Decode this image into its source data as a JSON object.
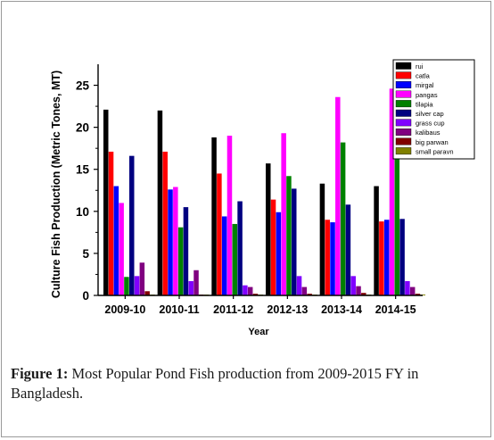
{
  "chart_data": {
    "type": "bar",
    "ylabel": "Culture Fish Production (Metric Tones, MT)",
    "xlabel": "Year",
    "ylim": [
      0,
      27.5
    ],
    "yticks": [
      0,
      5,
      10,
      15,
      20,
      25
    ],
    "grid": false,
    "legend_position": "top-right",
    "categories": [
      "2009-10",
      "2010-11",
      "2011-12",
      "2012-13",
      "2013-14",
      "2014-15"
    ],
    "series": [
      {
        "name": "rui",
        "color": "#000000",
        "values": [
          22.1,
          22.0,
          18.8,
          15.7,
          13.3,
          13.0
        ]
      },
      {
        "name": "catla",
        "color": "#ff0000",
        "values": [
          17.1,
          17.1,
          14.5,
          11.4,
          9.0,
          8.8
        ]
      },
      {
        "name": "mirgal",
        "color": "#0000ff",
        "values": [
          13.0,
          12.6,
          9.4,
          9.9,
          8.7,
          9.0
        ]
      },
      {
        "name": "pangas",
        "color": "#ff00ff",
        "values": [
          11.0,
          12.9,
          19.0,
          19.3,
          23.6,
          24.6
        ]
      },
      {
        "name": "tilapia",
        "color": "#008000",
        "values": [
          2.2,
          8.1,
          8.5,
          14.2,
          18.2,
          18.7
        ]
      },
      {
        "name": "silver cap",
        "color": "#000080",
        "values": [
          16.6,
          10.5,
          11.2,
          12.7,
          10.8,
          9.1
        ]
      },
      {
        "name": "grass cup",
        "color": "#8000ff",
        "values": [
          2.3,
          1.7,
          1.2,
          2.3,
          2.3,
          1.7
        ]
      },
      {
        "name": "kalibaus",
        "color": "#800080",
        "values": [
          3.9,
          3.0,
          1.0,
          1.0,
          1.1,
          1.0
        ]
      },
      {
        "name": "big parwan",
        "color": "#800000",
        "values": [
          0.5,
          0.1,
          0.2,
          0.2,
          0.3,
          0.2
        ]
      },
      {
        "name": "small paravn",
        "color": "#808000",
        "values": [
          0.1,
          0.1,
          0.1,
          0.1,
          0.1,
          0.1
        ]
      }
    ]
  },
  "caption": {
    "label": "Figure 1:",
    "text": " Most Popular Pond Fish production from 2009-2015 FY in Bangladesh."
  }
}
